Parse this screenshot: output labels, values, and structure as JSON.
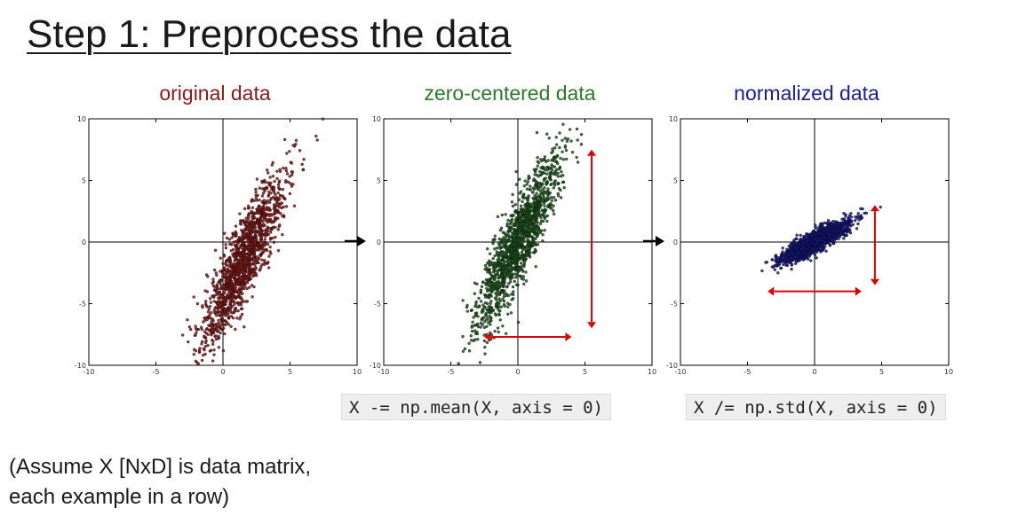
{
  "title": "Step 1: Preprocess the data",
  "code": {
    "subtract_mean": "X -= np.mean(X, axis = 0)",
    "divide_std": "X /= np.std(X, axis = 0)"
  },
  "note": {
    "line1": "(Assume X [NxD] is data matrix,",
    "line2": "each example in a row)"
  },
  "chart_data": [
    {
      "type": "scatter",
      "title": "original data",
      "color": "#8b1a1a",
      "xlim": [
        -10,
        10
      ],
      "ylim": [
        -10,
        10
      ],
      "xticks": [
        -10,
        -5,
        0,
        5,
        10
      ],
      "yticks": [
        -10,
        -5,
        0,
        5,
        10
      ],
      "distribution": {
        "mean": [
          1.5,
          -1.5
        ],
        "std_major": 3.8,
        "std_minor": 0.7,
        "angle_deg": 68
      },
      "range_arrows": []
    },
    {
      "type": "scatter",
      "title": "zero-centered data",
      "color": "#1f5a1f",
      "xlim": [
        -10,
        10
      ],
      "ylim": [
        -10,
        10
      ],
      "xticks": [
        -10,
        -5,
        0,
        5,
        10
      ],
      "yticks": [
        -10,
        -5,
        0,
        5,
        10
      ],
      "distribution": {
        "mean": [
          0,
          0
        ],
        "std_major": 3.8,
        "std_minor": 0.7,
        "angle_deg": 68
      },
      "range_arrows": [
        {
          "orientation": "vertical",
          "at": 5.5,
          "from": -7,
          "to": 7.5
        },
        {
          "orientation": "horizontal",
          "at": -7.7,
          "from": -2.5,
          "to": 4
        }
      ]
    },
    {
      "type": "scatter",
      "title": "normalized data",
      "color": "#1a1a8b",
      "xlim": [
        -10,
        10
      ],
      "ylim": [
        -10,
        10
      ],
      "xticks": [
        -10,
        -5,
        0,
        5,
        10
      ],
      "yticks": [
        -10,
        -5,
        0,
        5,
        10
      ],
      "distribution": {
        "mean": [
          0,
          0
        ],
        "std_major": 1.45,
        "std_minor": 0.38,
        "angle_deg": 32
      },
      "range_arrows": [
        {
          "orientation": "vertical",
          "at": 4.5,
          "from": -3.5,
          "to": 3
        },
        {
          "orientation": "horizontal",
          "at": -4,
          "from": -3.5,
          "to": 3.5
        }
      ]
    }
  ]
}
